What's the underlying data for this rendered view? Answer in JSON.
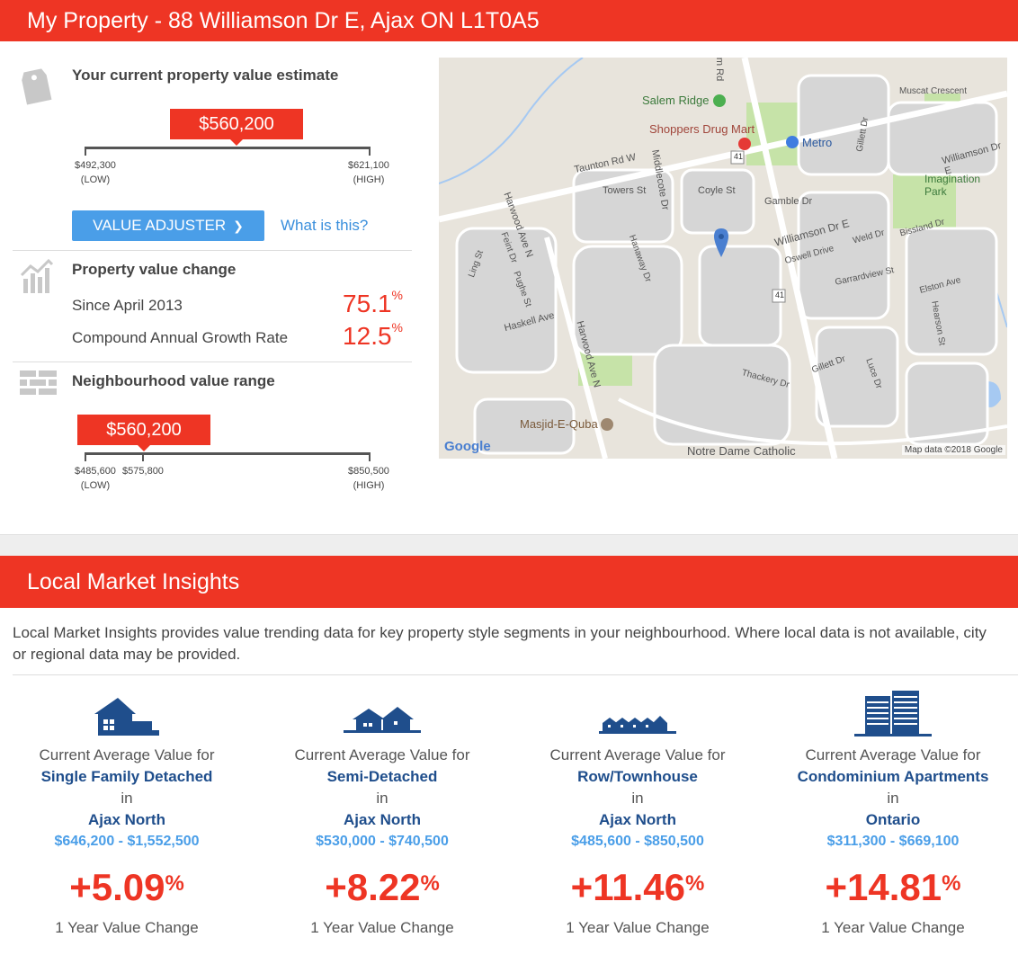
{
  "header": {
    "title": "My Property - 88 Williamson Dr E, Ajax ON L1T0A5"
  },
  "estimate": {
    "title": "Your current property value estimate",
    "value": "$560,200",
    "low": "$492,300",
    "high": "$621,100",
    "low_tag": "(LOW)",
    "high_tag": "(HIGH)",
    "adjuster_label": "VALUE ADJUSTER",
    "what_link": "What is this?"
  },
  "value_change": {
    "title": "Property value change",
    "since_label": "Since April 2013",
    "since_value": "75.1",
    "cagr_label": "Compound Annual Growth Rate",
    "cagr_value": "12.5",
    "pct_symbol": "%"
  },
  "neighbourhood": {
    "title": "Neighbourhood value range",
    "value": "$560,200",
    "low": "$485,600",
    "mid": "$575,800",
    "high": "$850,500",
    "low_tag": "(LOW)",
    "high_tag": "(HIGH)"
  },
  "map": {
    "labels": {
      "salem_ridge": "Salem Ridge",
      "shoppers": "Shoppers Drug Mart",
      "metro": "Metro",
      "taunton": "Taunton Rd W",
      "middlecote": "Middlecote Dr",
      "towers": "Towers St",
      "coyle": "Coyle St",
      "gamble": "Gamble Dr",
      "williamson": "Williamson Dr E",
      "williamson2": "Williamson Dr E",
      "imagination": "Imagination Park",
      "muscat": "Muscat Crescent",
      "gillett": "Gillett Dr",
      "harwood_n": "Harwood Ave N",
      "feint": "Feint Dr",
      "ling": "Ling St",
      "pughe": "Pughe St",
      "haskell": "Haskell Ave",
      "hanaway": "Hanaway Dr",
      "oswell": "Oswell Drive",
      "weld": "Weld Dr",
      "bissland": "Bissland Dr",
      "garrardview": "Garrardview St",
      "elston": "Elston Ave",
      "hearson": "Hearson St",
      "thackery": "Thackery Dr",
      "gillett2": "Gillett Dr",
      "luce": "Luce Dr",
      "masjid": "Masjid-E-Quba",
      "notre_dame": "Notre Dame Catholic",
      "hwy41": "41",
      "hwy41b": "41",
      "google": "Google",
      "attribution": "Map data ©2018 Google",
      "salem_rd": "em Rd"
    }
  },
  "insights": {
    "title": "Local Market Insights",
    "intro": "Local Market Insights provides value trending data for key property style segments in your neighbourhood. Where local data is not available, city or regional data may be provided.",
    "columns": [
      {
        "icon": "single-family-house-icon",
        "prefix": "Current Average Value for",
        "type": "Single Family Detached",
        "in": "in",
        "area": "Ajax North",
        "range": "$646,200 - $1,552,500",
        "change": "+5.09",
        "pct": "%",
        "change_label": "1 Year Value Change"
      },
      {
        "icon": "semi-detached-house-icon",
        "prefix": "Current Average Value for",
        "type": "Semi-Detached",
        "in": "in",
        "area": "Ajax North",
        "range": "$530,000 - $740,500",
        "change": "+8.22",
        "pct": "%",
        "change_label": "1 Year Value Change"
      },
      {
        "icon": "townhouse-icon",
        "prefix": "Current Average Value for",
        "type": "Row/Townhouse",
        "in": "in",
        "area": "Ajax North",
        "range": "$485,600 - $850,500",
        "change": "+11.46",
        "pct": "%",
        "change_label": "1 Year Value Change"
      },
      {
        "icon": "condo-building-icon",
        "prefix": "Current Average Value for",
        "type": "Condominium Apartments",
        "in": "in",
        "area": "Ontario",
        "range": "$311,300 - $669,100",
        "change": "+14.81",
        "pct": "%",
        "change_label": "1 Year Value Change"
      }
    ]
  },
  "colors": {
    "brand_red": "#ee3524",
    "link_blue": "#3a8fdc",
    "navy": "#1f4e8c"
  }
}
